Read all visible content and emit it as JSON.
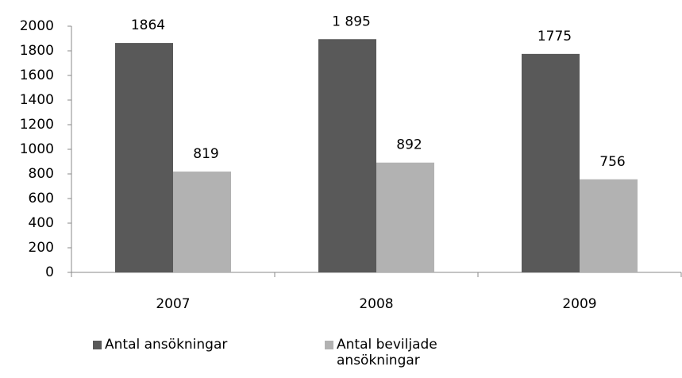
{
  "chart_data": {
    "type": "bar",
    "categories": [
      "2007",
      "2008",
      "2009"
    ],
    "series": [
      {
        "name": "Antal ansökningar",
        "color": "#595959",
        "values": [
          1864,
          1895,
          1775
        ],
        "value_labels": [
          "1864",
          "1 895",
          "1775"
        ]
      },
      {
        "name": "Antal beviljade ansökningar",
        "color": "#b2b2b2",
        "values": [
          819,
          892,
          756
        ]
      }
    ],
    "ylim": [
      0,
      2000
    ],
    "yticks": [
      0,
      200,
      400,
      600,
      800,
      1000,
      1200,
      1400,
      1600,
      1800,
      2000
    ],
    "grid": false,
    "legend": "bottom"
  }
}
